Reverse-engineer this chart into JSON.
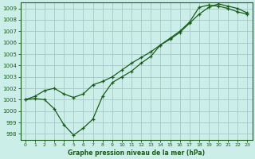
{
  "title": "Graphe pression niveau de la mer (hPa)",
  "bg_color": "#cceee8",
  "grid_color": "#aacccc",
  "line_color": "#1a5c1a",
  "xlim": [
    -0.5,
    23.5
  ],
  "ylim": [
    997.5,
    1009.5
  ],
  "xticks": [
    0,
    1,
    2,
    3,
    4,
    5,
    6,
    7,
    8,
    9,
    10,
    11,
    12,
    13,
    14,
    15,
    16,
    17,
    18,
    19,
    20,
    21,
    22,
    23
  ],
  "yticks": [
    998,
    999,
    1000,
    1001,
    1002,
    1003,
    1004,
    1005,
    1006,
    1007,
    1008,
    1009
  ],
  "series1_x": [
    0,
    1,
    2,
    3,
    4,
    5,
    6,
    7,
    8,
    9,
    10,
    11,
    12,
    13,
    14,
    15,
    16,
    17,
    18,
    19,
    20,
    21,
    22,
    23
  ],
  "series1_y": [
    1001.0,
    1001.1,
    1001.0,
    1000.2,
    998.8,
    997.9,
    998.5,
    999.3,
    1001.3,
    1002.5,
    1003.0,
    1003.5,
    1004.2,
    1004.8,
    1005.8,
    1006.4,
    1007.0,
    1007.8,
    1009.1,
    1009.3,
    1009.2,
    1009.0,
    1008.7,
    1008.5
  ],
  "series2_x": [
    0,
    1,
    2,
    3,
    4,
    5,
    6,
    7,
    8,
    9,
    10,
    11,
    12,
    13,
    14,
    15,
    16,
    17,
    18,
    19,
    20,
    21,
    22,
    23
  ],
  "series2_y": [
    1001.0,
    1001.3,
    1001.8,
    1002.0,
    1001.5,
    1001.2,
    1001.5,
    1002.3,
    1002.6,
    1003.0,
    1003.6,
    1004.2,
    1004.7,
    1005.2,
    1005.8,
    1006.3,
    1006.9,
    1007.7,
    1008.5,
    1009.1,
    1009.4,
    1009.2,
    1009.0,
    1008.6
  ]
}
